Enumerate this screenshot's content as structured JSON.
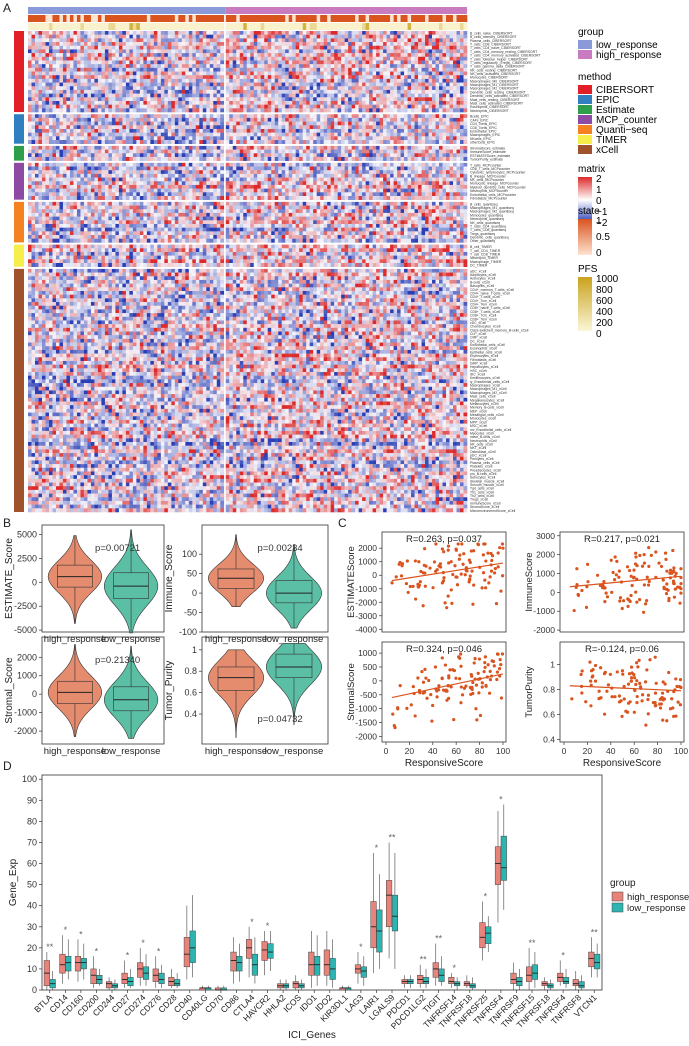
{
  "panels": {
    "A": "A",
    "B": "B",
    "C": "C",
    "D": "D"
  },
  "colors": {
    "low_response": "#8a9ad9",
    "high_response": "#c97bbf",
    "CIBERSORT": "#e21f26",
    "EPIC": "#2f7fc1",
    "Estimate": "#2e9e48",
    "MCP_counter": "#8e4aa3",
    "Quanti_seq": "#f58220",
    "TIMER": "#f6ee4a",
    "xCell": "#a0522d",
    "matrix_high": "#dd2a2a",
    "matrix_mid": "#ffffff",
    "matrix_low": "#2a3fb5",
    "state_high": "#d9541e",
    "state_low": "#fde3d0",
    "pfs_high": "#c9a21d",
    "pfs_low": "#fbf6d6",
    "violin_high": "#e58b6e",
    "violin_low": "#5bbfa6",
    "scatter": "#d9541e",
    "box_high": "#e8837c",
    "box_low": "#2cb5b0"
  },
  "chart_data": [
    {
      "id": "A",
      "type": "heatmap",
      "n_samples": 125,
      "split_after": 56,
      "legend": {
        "group": {
          "title": "group",
          "items": [
            "low_response",
            "high_response"
          ]
        },
        "method": {
          "title": "method",
          "items": [
            "CIBERSORT",
            "EPIC",
            "Estimate",
            "MCP_counter",
            "Quanti−seq",
            "TIMER",
            "xCell"
          ]
        },
        "matrix": {
          "title": "matrix",
          "ticks": [
            "2",
            "1",
            "0",
            "−1",
            "−2"
          ]
        },
        "state": {
          "title": "state",
          "ticks": [
            "1",
            "0.5",
            "0"
          ]
        },
        "pfs": {
          "title": "PFS",
          "ticks": [
            "1000",
            "800",
            "600",
            "400",
            "200",
            "0"
          ]
        }
      },
      "row_groups": [
        {
          "method": "CIBERSORT",
          "rows": [
            "B_cells_naive_CIBERSORT",
            "B_cells_memory_CIBERSORT",
            "Plasma_cells_CIBERSORT",
            "T_cells_CD8_CIBERSORT",
            "T_cells_CD4_naive_CIBERSORT",
            "T_cells_CD4_memory_resting_CIBERSORT",
            "T_cells_CD4_memory_activated_CIBERSORT",
            "T_cells_follicular_helper_CIBERSORT",
            "T_cells_regulatory_(Tregs)_CIBERSORT",
            "T_cells_gamma_delta_CIBERSORT",
            "NK_cells_resting_CIBERSORT",
            "NK_cells_activated_CIBERSORT",
            "Monocytes_CIBERSORT",
            "Macrophages_M0_CIBERSORT",
            "Macrophages_M1_CIBERSORT",
            "Macrophages_M2_CIBERSORT",
            "Dendritic_cells_resting_CIBERSORT",
            "Dendritic_cells_activated_CIBERSORT",
            "Mast_cells_resting_CIBERSORT",
            "Mast_cells_activated_CIBERSORT",
            "Eosinophils_CIBERSORT",
            "Neutrophils_CIBERSORT"
          ]
        },
        {
          "method": "EPIC",
          "rows": [
            "Bcells_EPIC",
            "CAFs_EPIC",
            "CD4_Tcells_EPIC",
            "CD8_Tcells_EPIC",
            "Endothelial_EPIC",
            "Macrophages_EPIC",
            "NKcells_EPIC",
            "otherCells_EPIC"
          ]
        },
        {
          "method": "Estimate",
          "rows": [
            "StromalScore_estimate",
            "ImmuneScore_estimate",
            "ESTIMATEScore_estimate",
            "TumorPurity_estimate"
          ]
        },
        {
          "method": "MCP_counter",
          "rows": [
            "T_cells_MCPcounter",
            "CD8_T_cells_MCPcounter",
            "Cytotoxic_lymphocytes_MCPcounter",
            "B_lineage_MCPcounter",
            "NK_cells_MCPcounter",
            "Monocytic_lineage_MCPcounter",
            "Myeloid_dendritic_cells_MCPcounter",
            "Neutrophils_MCPcounter",
            "Endothelial_cells_MCPcounter",
            "Fibroblasts_MCPcounter"
          ]
        },
        {
          "method": "Quanti_seq",
          "rows": [
            "B_cells_quantiseq",
            "Macrophages_M1_quantiseq",
            "Macrophages_M2_quantiseq",
            "Monocytes_quantiseq",
            "Neutrophils_quantiseq",
            "NK_cells_quantiseq",
            "T_cells_CD4_quantiseq",
            "T_cells_CD8_quantiseq",
            "Tregs_quantiseq",
            "Dendritic_cells_quantiseq",
            "Other_quantiseq"
          ]
        },
        {
          "method": "TIMER",
          "rows": [
            "B_cell_TIMER",
            "T_cell_CD4_TIMER",
            "T_cell_CD8_TIMER",
            "Neutrophil_TIMER",
            "Macrophage_TIMER",
            "DC_TIMER"
          ]
        },
        {
          "method": "xCell",
          "rows": [
            "aDC_xCell",
            "Adipocytes_xCell",
            "Astrocytes_xCell",
            "B-cells_xCell",
            "Basophils_xCell",
            "CD4+_memory_T-cells_xCell",
            "CD4+_naive_T-cells_xCell",
            "CD4+_T-cells_xCell",
            "CD4+_Tcm_xCell",
            "CD4+_Tem_xCell",
            "CD8+_naive_T-cells_xCell",
            "CD8+_T-cells_xCell",
            "CD8+_Tcm_xCell",
            "CD8+_Tem_xCell",
            "cDC_xCell",
            "Chondrocytes_xCell",
            "Class-switched_memory_B-cells_xCell",
            "CLP_xCell",
            "CMP_xCell",
            "DC_xCell",
            "Endothelial_cells_xCell",
            "Eosinophils_xCell",
            "Epithelial_cells_xCell",
            "Erythrocytes_xCell",
            "Fibroblasts_xCell",
            "GMP_xCell",
            "Hepatocytes_xCell",
            "HSC_xCell",
            "iDC_xCell",
            "Keratinocytes_xCell",
            "ly_Endothelial_cells_xCell",
            "Macrophages_xCell",
            "Macrophages_M1_xCell",
            "Macrophages_M2_xCell",
            "Mast_cells_xCell",
            "Megakaryocytes_xCell",
            "Melanocytes_xCell",
            "Memory_B-cells_xCell",
            "MEP_xCell",
            "Mesangial_cells_xCell",
            "Monocytes_xCell",
            "MPP_xCell",
            "MSC_xCell",
            "mv_Endothelial_cells_xCell",
            "Myocytes_xCell",
            "naive_B-cells_xCell",
            "Neutrophils_xCell",
            "NK_cells_xCell",
            "NKT_xCell",
            "Osteoblast_xCell",
            "pDC_xCell",
            "Pericytes_xCell",
            "Plasma_cells_xCell",
            "Platelets_xCell",
            "Preadipocytes_xCell",
            "pro_B-cells_xCell",
            "Sebocytes_xCell",
            "Skeletal_muscle_xCell",
            "Smooth_muscle_xCell",
            "Tgd_cells_xCell",
            "Th1_cells_xCell",
            "Th2_cells_xCell",
            "Tregs_xCell",
            "ImmuneScore_xCell",
            "StromaScore_xCell",
            "MicroenvironmentScore_xCell"
          ]
        }
      ]
    },
    {
      "id": "B",
      "type": "violin",
      "categories": [
        "high_response",
        "low_response"
      ],
      "plots": [
        {
          "ylabel": "ESTIMATE_Score",
          "ylim": [
            -5200,
            6000
          ],
          "yticks": [
            5000,
            2500,
            0,
            -2500,
            -5000
          ],
          "p": "p=0.00721",
          "median": [
            600,
            -400
          ],
          "q1": [
            -500,
            -1700
          ],
          "q3": [
            1800,
            1000
          ],
          "min": [
            -4300,
            -5300
          ],
          "max": [
            4900,
            5500
          ]
        },
        {
          "ylabel": "Immune_Score",
          "ylim": [
            -100,
            175
          ],
          "yticks": [
            100,
            50,
            0,
            -50,
            -100
          ],
          "p": "p=0.00234",
          "median": [
            38,
            0
          ],
          "q1": [
            12,
            -25
          ],
          "q3": [
            62,
            32
          ],
          "min": [
            -35,
            -90
          ],
          "max": [
            150,
            125
          ]
        },
        {
          "ylabel": "Stromal_Score",
          "ylim": [
            -2700,
            3100
          ],
          "yticks": [
            2000,
            1000,
            0,
            -1000,
            -2000
          ],
          "p": "p=0.21340",
          "median": [
            100,
            -300
          ],
          "q1": [
            -500,
            -900
          ],
          "q3": [
            700,
            400
          ],
          "min": [
            -2300,
            -2400
          ],
          "max": [
            2700,
            2600
          ]
        },
        {
          "ylabel": "Tumor_Purity",
          "ylim": [
            0.12,
            1.12
          ],
          "yticks": [
            1.0,
            0.8,
            0.6,
            0.4
          ],
          "p": "p=0.04732",
          "median": [
            0.74,
            0.84
          ],
          "q1": [
            0.62,
            0.74
          ],
          "q3": [
            0.84,
            0.96
          ],
          "min": [
            0.18,
            0.3
          ],
          "max": [
            1.0,
            1.06
          ]
        }
      ]
    },
    {
      "id": "C",
      "type": "scatter",
      "xlabel": "ResponsiveScore",
      "xlim": [
        0,
        100
      ],
      "xticks": [
        0,
        20,
        40,
        60,
        80,
        100
      ],
      "plots": [
        {
          "ylabel": "ESTIMATEScore",
          "annotation": "R=0.263,  p=0.037",
          "ylim": [
            -4200,
            3200
          ],
          "yticks": [
            2000,
            1000,
            0,
            -1000,
            -2000,
            -3000,
            -4000
          ],
          "fit": [
            [
              5,
              -400
            ],
            [
              100,
              900
            ]
          ]
        },
        {
          "ylabel": "ImmuneScore",
          "annotation": "R=0.217,  p=0.021",
          "ylim": [
            -2100,
            3200
          ],
          "yticks": [
            3000,
            2000,
            1000,
            0,
            -1000,
            -2000
          ],
          "fit": [
            [
              5,
              300
            ],
            [
              100,
              850
            ]
          ]
        },
        {
          "ylabel": "StromalScore",
          "annotation": "R=0.324,  p=0.046",
          "ylim": [
            -2200,
            1400
          ],
          "yticks": [
            1000,
            500,
            0,
            -500,
            -1000,
            -1500,
            -2000
          ],
          "fit": [
            [
              5,
              -600
            ],
            [
              100,
              250
            ]
          ]
        },
        {
          "ylabel": "TumorPurity",
          "annotation": "R=-0.124,  p=0.06",
          "ylim": [
            0.38,
            1.18
          ],
          "yticks": [
            1.0,
            0.8,
            0.6,
            0.4
          ],
          "fit": [
            [
              5,
              0.83
            ],
            [
              100,
              0.79
            ]
          ]
        }
      ]
    },
    {
      "id": "D",
      "type": "box",
      "xlabel": "ICI_Genes",
      "ylabel": "Gene_Exp",
      "ylim": [
        0,
        102
      ],
      "yticks": [
        0,
        10,
        20,
        30,
        40,
        50,
        60,
        70,
        80,
        90,
        100
      ],
      "legend": {
        "title": "group",
        "items": [
          "high_response",
          "low_response"
        ]
      },
      "genes": [
        "BTLA",
        "CD14",
        "CD160",
        "CD200",
        "CD244",
        "CD27",
        "CD274",
        "CD276",
        "CD28",
        "CD40",
        "CD40LG",
        "CD70",
        "CD86",
        "CTLA4",
        "HAVCR2",
        "HHLA2",
        "ICOS",
        "IDO1",
        "IDO2",
        "KIR3DL1",
        "LAG3",
        "LAIR1",
        "LGALS9",
        "PDCD1",
        "PDCD1LG2",
        "TIGIT",
        "TNFRSF14",
        "TNFRSF18",
        "TNFRSF25",
        "TNFRSF4",
        "TNFRSF9",
        "TNFRSF15",
        "TNFRSF18",
        "TNFRSF4",
        "TNFRSF8",
        "VTCN1"
      ],
      "sig": [
        "**",
        "*",
        "*",
        "*",
        "",
        "*",
        "*",
        "*",
        "",
        "",
        "",
        "",
        "",
        "*",
        "*",
        "",
        "",
        "",
        "",
        "",
        "*",
        "*",
        "**",
        "",
        "**",
        "**",
        "*",
        "",
        "*",
        "*",
        "",
        "**",
        "",
        "*",
        "",
        "**"
      ],
      "high": [
        [
          0,
          2,
          8,
          14,
          18
        ],
        [
          3,
          8,
          12,
          17,
          26
        ],
        [
          4,
          9,
          13,
          16,
          24
        ],
        [
          1,
          3,
          7,
          10,
          16
        ],
        [
          0,
          1,
          3,
          4,
          6
        ],
        [
          1,
          3,
          5,
          8,
          14
        ],
        [
          2,
          6,
          10,
          13,
          20
        ],
        [
          1,
          4,
          7,
          10,
          16
        ],
        [
          1,
          2,
          4,
          6,
          10
        ],
        [
          5,
          11,
          17,
          25,
          40
        ],
        [
          0,
          0,
          1,
          1,
          2
        ],
        [
          0,
          0,
          0,
          1,
          2
        ],
        [
          3,
          9,
          14,
          18,
          25
        ],
        [
          6,
          15,
          20,
          24,
          30
        ],
        [
          7,
          14,
          19,
          23,
          28
        ],
        [
          0,
          1,
          2,
          3,
          5
        ],
        [
          0,
          1,
          3,
          4,
          7
        ],
        [
          1,
          7,
          12,
          18,
          28
        ],
        [
          2,
          7,
          12,
          19,
          28
        ],
        [
          0,
          0,
          1,
          1,
          2
        ],
        [
          3,
          8,
          10,
          12,
          18
        ],
        [
          8,
          20,
          30,
          42,
          65
        ],
        [
          15,
          30,
          45,
          52,
          70
        ],
        [
          1,
          3,
          4,
          5,
          7
        ],
        [
          1,
          3,
          5,
          7,
          12
        ],
        [
          2,
          6,
          10,
          13,
          22
        ],
        [
          1,
          3,
          4,
          6,
          8
        ],
        [
          1,
          2,
          3,
          4,
          7
        ],
        [
          14,
          20,
          25,
          32,
          42
        ],
        [
          32,
          50,
          60,
          68,
          85
        ],
        [
          0,
          3,
          5,
          8,
          13
        ],
        [
          0,
          4,
          7,
          11,
          20
        ],
        [
          0,
          2,
          3,
          4,
          6
        ],
        [
          2,
          4,
          6,
          8,
          14
        ],
        [
          0,
          2,
          3,
          5,
          9
        ],
        [
          6,
          11,
          15,
          18,
          25
        ]
      ],
      "low": [
        [
          0,
          1,
          3,
          5,
          9
        ],
        [
          5,
          9,
          13,
          16,
          24
        ],
        [
          5,
          10,
          13,
          15,
          22
        ],
        [
          2,
          3,
          5,
          7,
          10
        ],
        [
          0,
          1,
          2,
          3,
          5
        ],
        [
          1,
          2,
          4,
          6,
          10
        ],
        [
          2,
          5,
          8,
          11,
          17
        ],
        [
          1,
          3,
          5,
          8,
          12
        ],
        [
          1,
          2,
          3,
          5,
          8
        ],
        [
          6,
          13,
          20,
          28,
          45
        ],
        [
          0,
          0,
          1,
          1,
          2
        ],
        [
          0,
          0,
          0,
          1,
          2
        ],
        [
          4,
          9,
          13,
          16,
          22
        ],
        [
          3,
          7,
          12,
          17,
          25
        ],
        [
          9,
          15,
          18,
          22,
          28
        ],
        [
          0,
          1,
          2,
          3,
          5
        ],
        [
          0,
          1,
          2,
          3,
          5
        ],
        [
          2,
          7,
          12,
          16,
          26
        ],
        [
          1,
          5,
          10,
          15,
          24
        ],
        [
          0,
          0,
          1,
          1,
          2
        ],
        [
          2,
          6,
          9,
          11,
          16
        ],
        [
          10,
          18,
          28,
          38,
          55
        ],
        [
          10,
          28,
          35,
          45,
          65
        ],
        [
          1,
          3,
          4,
          5,
          7
        ],
        [
          1,
          3,
          4,
          6,
          10
        ],
        [
          2,
          4,
          7,
          10,
          16
        ],
        [
          0,
          2,
          3,
          4,
          6
        ],
        [
          0,
          1,
          2,
          3,
          6
        ],
        [
          18,
          22,
          27,
          30,
          35
        ],
        [
          38,
          52,
          58,
          73,
          88
        ],
        [
          0,
          2,
          4,
          6,
          10
        ],
        [
          1,
          5,
          8,
          12,
          18
        ],
        [
          0,
          1,
          2,
          3,
          5
        ],
        [
          1,
          3,
          4,
          6,
          10
        ],
        [
          0,
          1,
          2,
          4,
          7
        ],
        [
          6,
          10,
          13,
          17,
          22
        ]
      ]
    }
  ]
}
